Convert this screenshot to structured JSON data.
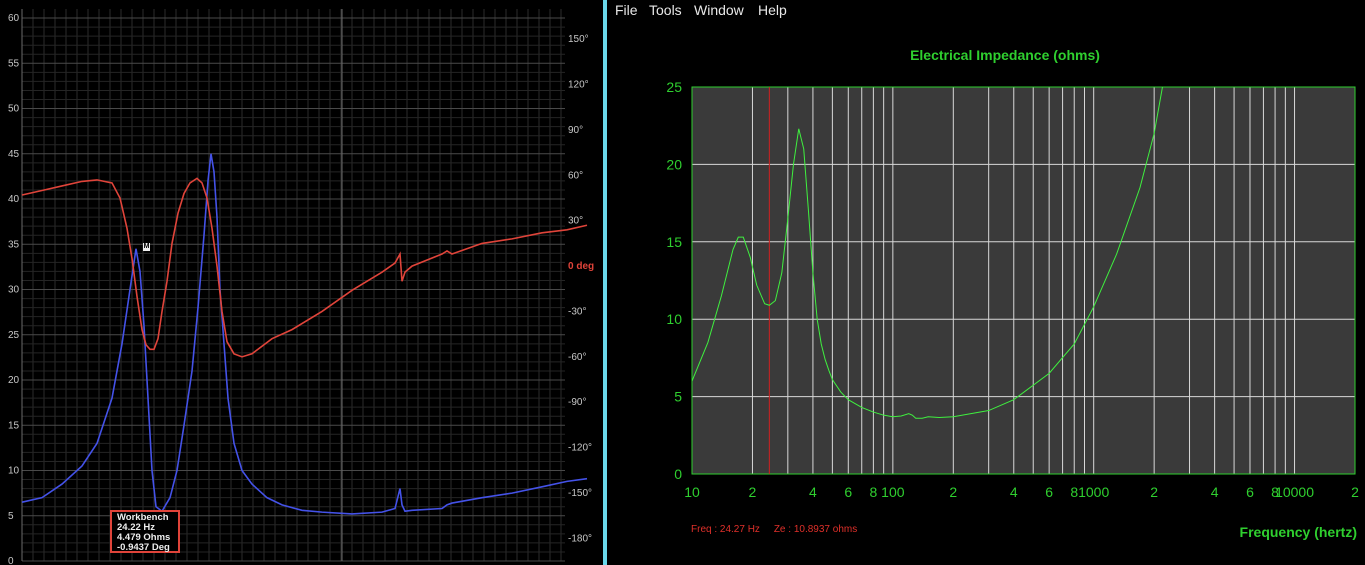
{
  "left_panel": {
    "left_axis_ticks": [
      "0",
      "5",
      "10",
      "15",
      "20",
      "25",
      "30",
      "35",
      "40",
      "45",
      "50",
      "55",
      "60"
    ],
    "right_axis_ticks": [
      "-180°",
      "-150°",
      "-120°",
      "-90°",
      "-60°",
      "-30°",
      "0 deg",
      "30°",
      "60°",
      "90°",
      "120°",
      "150°"
    ],
    "tooltip": {
      "title": "Workbench",
      "freq": "24.22 Hz",
      "impedance": "4.479 Ohms",
      "phase": "-0.9437 Deg"
    },
    "marker_label": "M",
    "colors": {
      "impedance": "#4452e8",
      "phase": "#e0443a",
      "background": "#000000",
      "zero_deg_label": "#e0443a"
    }
  },
  "right_panel": {
    "menu": [
      "File",
      "Tools",
      "Window",
      "Help"
    ],
    "readout": {
      "freq": "Freq : 24.27 Hz",
      "ze": "Ze : 10.8937 ohms"
    },
    "colors": {
      "trace": "#3ff03f",
      "label": "#2fcf2f",
      "cursor": "#d02020",
      "plot_bg": "#3a3a3a"
    }
  },
  "chart_data": [
    {
      "type": "line",
      "panel": "left",
      "y_ticks": [
        0,
        5,
        10,
        15,
        20,
        25,
        30,
        35,
        40,
        45,
        50,
        55,
        60
      ],
      "y2_ticks": [
        -180,
        -150,
        -120,
        -90,
        -60,
        -30,
        0,
        30,
        60,
        90,
        120,
        150
      ],
      "ylim": [
        0,
        61
      ],
      "y2lim": [
        -195,
        170
      ],
      "grid": true,
      "series": [
        {
          "role": "impedance",
          "x": [
            0,
            20,
            40,
            60,
            75,
            90,
            100,
            108,
            114,
            118,
            122,
            126,
            130,
            134,
            140,
            148,
            155,
            162,
            170,
            176,
            182,
            186,
            189,
            192,
            195,
            198,
            202,
            206,
            212,
            220,
            230,
            245,
            260,
            280,
            300,
            330,
            360,
            373,
            378,
            380,
            383,
            390,
            420,
            425,
            430,
            460,
            490,
            520,
            545,
            565
          ],
          "y": [
            6.5,
            7,
            8.5,
            10.5,
            13,
            18,
            24,
            30,
            34.5,
            32,
            26,
            18,
            10,
            6,
            5.5,
            7,
            10,
            15,
            21,
            28,
            36,
            42,
            45,
            43,
            38,
            30,
            24,
            18,
            13,
            10,
            8.5,
            7,
            6.2,
            5.6,
            5.4,
            5.2,
            5.4,
            5.8,
            8,
            6.2,
            5.5,
            5.6,
            5.8,
            6.2,
            6.4,
            7,
            7.5,
            8.2,
            8.8,
            9.1
          ]
        },
        {
          "role": "phase",
          "x": [
            0,
            20,
            40,
            60,
            75,
            90,
            98,
            105,
            110,
            115,
            120,
            124,
            128,
            132,
            136,
            140,
            145,
            150,
            156,
            162,
            168,
            175,
            180,
            185,
            190,
            195,
            200,
            205,
            212,
            220,
            230,
            250,
            270,
            300,
            330,
            360,
            373,
            378,
            380,
            383,
            390,
            420,
            425,
            430,
            460,
            490,
            520,
            545,
            565
          ],
          "y": [
            47,
            50,
            53,
            56,
            57,
            55,
            45,
            25,
            5,
            -20,
            -42,
            -52,
            -55,
            -55,
            -48,
            -30,
            -10,
            15,
            35,
            48,
            55,
            58,
            55,
            45,
            25,
            0,
            -30,
            -50,
            -58,
            -60,
            -58,
            -48,
            -42,
            -30,
            -16,
            -4,
            2,
            8,
            -10,
            -4,
            0,
            8,
            10,
            8,
            15,
            18,
            22,
            24,
            27
          ]
        }
      ]
    },
    {
      "type": "line",
      "panel": "right",
      "title": "Electrical Impedance (ohms)",
      "xlabel": "Frequency (hertz)",
      "xscale": "log",
      "xlim": [
        10,
        20000
      ],
      "ylim": [
        0,
        25
      ],
      "y_ticks": [
        0,
        5,
        10,
        15,
        20,
        25
      ],
      "x_tick_labels": [
        "10",
        "2",
        "4",
        "6",
        "8",
        "100",
        "2",
        "4",
        "6",
        "8",
        "1000",
        "2",
        "4",
        "6",
        "8",
        "10000",
        "2"
      ],
      "cursor_x": 24.27,
      "grid": true,
      "series": [
        {
          "name": "Ze",
          "x": [
            10,
            12,
            14,
            16,
            17,
            18,
            19.5,
            21,
            23,
            24.27,
            26,
            28,
            30,
            32,
            34,
            36,
            38,
            40,
            42,
            44,
            46,
            48,
            50,
            55,
            60,
            70,
            80,
            90,
            100,
            110,
            120,
            125,
            130,
            140,
            150,
            170,
            200,
            300,
            400,
            600,
            800,
            1000,
            1300,
            1700,
            2000,
            2200
          ],
          "y": [
            6,
            8.5,
            11.5,
            14.5,
            15.3,
            15.3,
            14,
            12.2,
            11,
            10.9,
            11.2,
            13,
            16.5,
            20,
            22.3,
            21,
            17,
            13,
            10,
            8.4,
            7.4,
            6.7,
            6.1,
            5.3,
            4.8,
            4.3,
            4.0,
            3.8,
            3.7,
            3.75,
            3.9,
            3.8,
            3.6,
            3.6,
            3.7,
            3.65,
            3.7,
            4.1,
            4.8,
            6.5,
            8.4,
            10.8,
            14.2,
            18.5,
            22,
            25
          ]
        }
      ]
    }
  ]
}
